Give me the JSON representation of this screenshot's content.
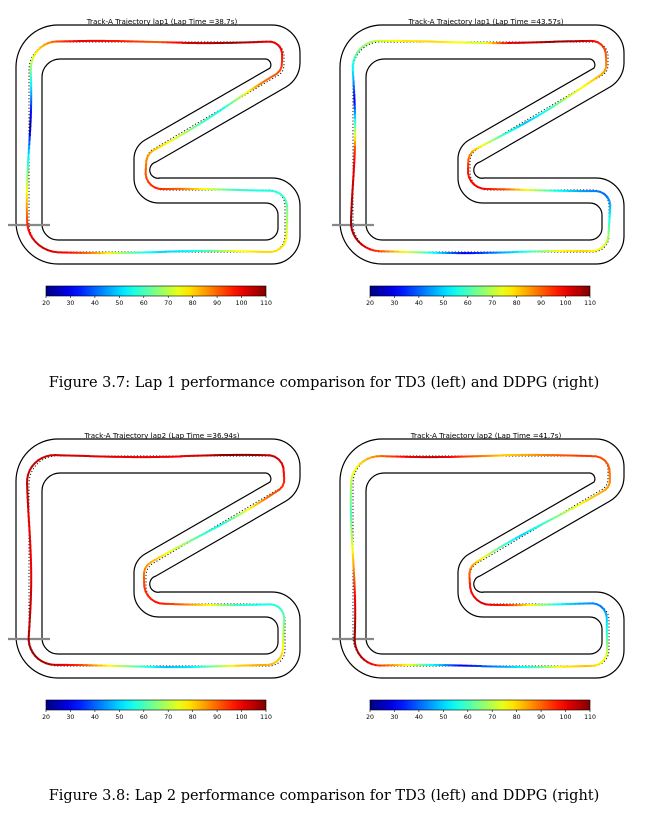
{
  "figures": [
    {
      "caption": "Figure 3.7: Lap 1 performance comparison for TD3 (left) and DDPG (right)",
      "panels": [
        {
          "title": "Track-A Trajectory lap1 (Lap Time =38.7s)",
          "profile": [
            102,
            105,
            108,
            104,
            100,
            93,
            88,
            70,
            55,
            60,
            72,
            80,
            90,
            96,
            90,
            75,
            60,
            56,
            58,
            68,
            78,
            80,
            75,
            62,
            52,
            50,
            58,
            72,
            88,
            100,
            104,
            95,
            80,
            65,
            48,
            22,
            40,
            60,
            78,
            92,
            100,
            98,
            95,
            90
          ]
        },
        {
          "title": "Track-A Trajectory lap1 (Lap Time =43.57s)",
          "profile": [
            100,
            104,
            108,
            105,
            95,
            85,
            78,
            70,
            56,
            48,
            60,
            78,
            96,
            100,
            92,
            72,
            55,
            45,
            40,
            55,
            72,
            80,
            76,
            62,
            50,
            40,
            30,
            50,
            70,
            88,
            104,
            108,
            105,
            102,
            95,
            62,
            30,
            50,
            64,
            72,
            78,
            80,
            76,
            72
          ]
        }
      ]
    },
    {
      "caption": "Figure 3.8: Lap 2 performance comparison for TD3 (left) and DDPG (right)",
      "panels": [
        {
          "title": "Track-A Trajectory lap2 (Lap Time =36.94s)",
          "profile": [
            100,
            104,
            110,
            108,
            102,
            95,
            88,
            72,
            55,
            60,
            72,
            82,
            92,
            98,
            90,
            76,
            60,
            55,
            58,
            68,
            80,
            84,
            80,
            64,
            52,
            48,
            60,
            74,
            90,
            102,
            108,
            106,
            104,
            102,
            100,
            100,
            102,
            104,
            104,
            103,
            102,
            101,
            100,
            100
          ]
        },
        {
          "title": "Track-A Trajectory lap2 (Lap Time =41.7s)",
          "profile": [
            80,
            84,
            90,
            94,
            92,
            86,
            80,
            70,
            58,
            50,
            62,
            80,
            96,
            102,
            95,
            74,
            56,
            46,
            42,
            56,
            74,
            82,
            78,
            62,
            50,
            40,
            30,
            52,
            74,
            90,
            104,
            108,
            104,
            96,
            84,
            70,
            60,
            68,
            78,
            90,
            100,
            104,
            96,
            88
          ]
        }
      ]
    }
  ],
  "colorbar": {
    "min": 20,
    "max": 110,
    "ticks": [
      20,
      30,
      40,
      50,
      60,
      70,
      80,
      90,
      100,
      110
    ]
  }
}
